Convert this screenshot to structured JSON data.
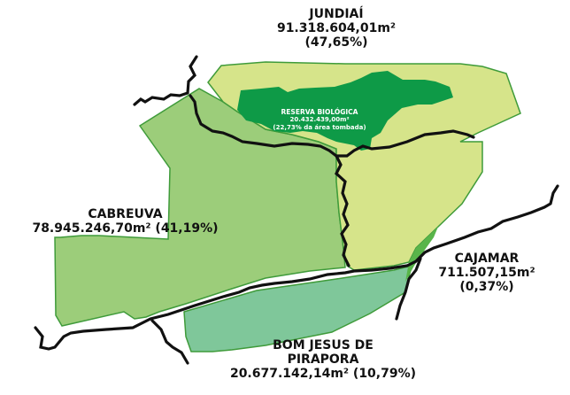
{
  "colors": {
    "jundiai": "#d6e48a",
    "cabreuva": "#9ccd7a",
    "bom_jesus": "#7fc79a",
    "reserva": "#0e9a47",
    "cajamar": "#59b54a",
    "border": "#111111",
    "outline": "#3f9b3a"
  },
  "regions": {
    "jundiai": {
      "name": "JUNDIAÍ",
      "area": "91.318.604,01m²",
      "percent": "(47,65%)"
    },
    "cabreuva": {
      "name": "CABREUVA",
      "area_percent": "78.945.246,70m² (41,19%)"
    },
    "cajamar": {
      "name": "CAJAMAR",
      "area": "711.507,15m²",
      "percent": "(0,37%)"
    },
    "bom_jesus": {
      "name_line1": "BOM JESUS DE",
      "name_line2": "PIRAPORA",
      "area_percent": "20.677.142,14m² (10,79%)"
    },
    "reserva": {
      "name": "RESERVA BIOLÓGICA",
      "area": "20.432.439,00m²",
      "note": "(22,73% da área tombada)"
    }
  }
}
